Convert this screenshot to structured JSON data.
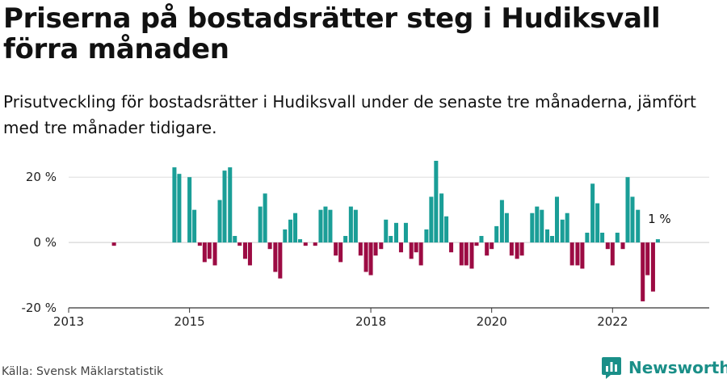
{
  "chart_data": {
    "type": "bar",
    "title": "Priserna på bostadsrätter steg i Hudiksvall förra månaden",
    "subtitle": "Prisutveckling för bostadsrätter i Hudiksvall under de senaste tre månaderna, jämfört med tre månader tidigare.",
    "xlabel": "",
    "ylabel": "",
    "ylim": [
      -20,
      25
    ],
    "y_ticks": [
      20,
      0,
      -20
    ],
    "y_tick_labels": [
      "20 %",
      "0 %",
      "-20 %"
    ],
    "x_ticks": [
      2013,
      2015,
      2018,
      2020,
      2022
    ],
    "x_tick_labels": [
      "2013",
      "2015",
      "2018",
      "2020",
      "2022"
    ],
    "x_start": 2013.0,
    "x_end": 2023.6,
    "grid": true,
    "legend": "none",
    "colors": {
      "positive": "#1a9e97",
      "negative": "#9c0b43",
      "grid": "#dddddd",
      "axis": "#333333"
    },
    "annotation": {
      "text": "1 %",
      "x": 2022.75,
      "y": 1
    },
    "series": [
      {
        "x": [
          2013.75,
          2013.83,
          2014.75,
          2014.83,
          2014.92,
          2015.0,
          2015.08,
          2015.17,
          2015.25,
          2015.33,
          2015.42,
          2015.5,
          2015.58,
          2015.67,
          2015.75,
          2015.83,
          2015.92,
          2016.0,
          2016.08,
          2016.17,
          2016.25,
          2016.33,
          2016.42,
          2016.5,
          2016.58,
          2016.67,
          2016.75,
          2016.83,
          2016.92,
          2017.0,
          2017.08,
          2017.17,
          2017.25,
          2017.33,
          2017.42,
          2017.5,
          2017.58,
          2017.67,
          2017.75,
          2017.83,
          2017.92,
          2018.0,
          2018.08,
          2018.17,
          2018.25,
          2018.33,
          2018.42,
          2018.5,
          2018.58,
          2018.67,
          2018.75,
          2018.83,
          2018.92,
          2019.0,
          2019.08,
          2019.17,
          2019.25,
          2019.33,
          2019.42,
          2019.5,
          2019.58,
          2019.67,
          2019.75,
          2019.83,
          2019.92,
          2020.0,
          2020.08,
          2020.17,
          2020.25,
          2020.33,
          2020.42,
          2020.5,
          2020.58,
          2020.67,
          2020.75,
          2020.83,
          2020.92,
          2021.0,
          2021.08,
          2021.17,
          2021.25,
          2021.33,
          2021.42,
          2021.5,
          2021.58,
          2021.67,
          2021.75,
          2021.83,
          2021.92,
          2022.0,
          2022.08,
          2022.17,
          2022.25,
          2022.33,
          2022.42,
          2022.5,
          2022.58,
          2022.67,
          2022.75
        ],
        "values": [
          -1,
          0,
          23,
          21,
          0,
          20,
          10,
          -1,
          -6,
          -5,
          -7,
          13,
          22,
          23,
          2,
          -1,
          -5,
          -7,
          0,
          11,
          15,
          -2,
          -9,
          -11,
          4,
          7,
          9,
          1,
          -1,
          0,
          -1,
          10,
          11,
          10,
          -4,
          -6,
          2,
          11,
          10,
          -4,
          -9,
          -10,
          -4,
          -2,
          7,
          2,
          6,
          -3,
          6,
          -5,
          -3,
          -7,
          4,
          14,
          25,
          15,
          8,
          -3,
          0,
          -7,
          -7,
          -8,
          -1,
          2,
          -4,
          -2,
          5,
          13,
          9,
          -4,
          -5,
          -4,
          0,
          9,
          11,
          10,
          4,
          2,
          14,
          7,
          9,
          -7,
          -7,
          -8,
          3,
          18,
          12,
          3,
          -2,
          -7,
          3,
          -2,
          20,
          14,
          10,
          -18,
          -10,
          -15,
          1
        ]
      }
    ],
    "source": "Källa: Svensk Mäklarstatistik",
    "brand": "Newsworthy",
    "brand_icon": "bar-chart-logo-icon"
  }
}
